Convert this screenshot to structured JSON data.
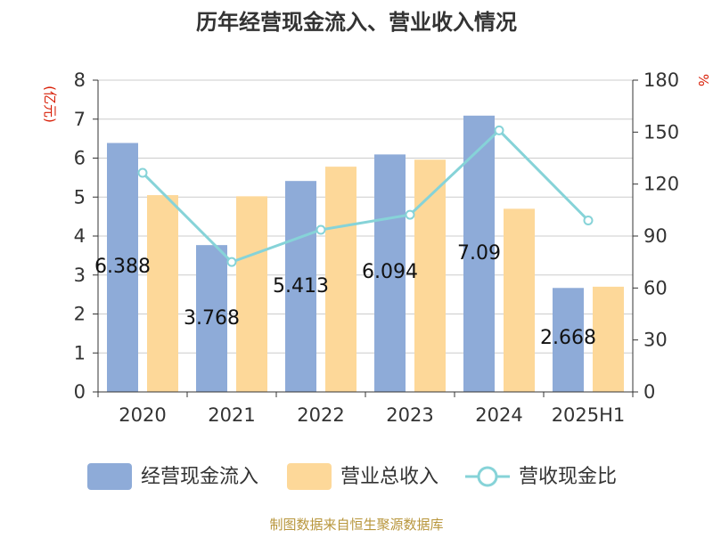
{
  "chart_data": {
    "type": "bar",
    "title": "历年经营现金流入、营业收入情况",
    "left_unit": "(亿元)",
    "right_unit": "%",
    "categories": [
      "2020",
      "2021",
      "2022",
      "2023",
      "2024",
      "2025H1"
    ],
    "series": [
      {
        "name": "经营现金流入",
        "type": "bar",
        "axis": "left",
        "values": [
          6.388,
          3.768,
          5.413,
          6.094,
          7.09,
          2.668
        ],
        "labels": [
          "6.388",
          "3.768",
          "5.413",
          "6.094",
          "7.09",
          "2.668"
        ]
      },
      {
        "name": "营业总收入",
        "type": "bar",
        "axis": "left",
        "values": [
          5.05,
          5.02,
          5.78,
          5.96,
          4.7,
          2.7
        ]
      },
      {
        "name": "营收现金比",
        "type": "line",
        "axis": "right",
        "values": [
          126.5,
          75.0,
          93.6,
          102.3,
          151.0,
          99.0
        ]
      }
    ],
    "y_left": {
      "min": 0,
      "max": 8,
      "ticks": [
        "0",
        "1",
        "2",
        "3",
        "4",
        "5",
        "6",
        "7",
        "8"
      ]
    },
    "y_right": {
      "min": 0,
      "max": 180,
      "ticks": [
        "0",
        "30",
        "60",
        "90",
        "120",
        "150",
        "180"
      ]
    },
    "grid": true,
    "legend_position": "bottom",
    "colors": {
      "cash_inflow": "#8eabd8",
      "revenue": "#fdd899",
      "ratio": "#86d3d8",
      "title": "#333333",
      "unit": "#d81e06",
      "source": "#b8963c",
      "axis": "#333333",
      "grid": "#cccccc"
    }
  },
  "source": "制图数据来自恒生聚源数据库"
}
